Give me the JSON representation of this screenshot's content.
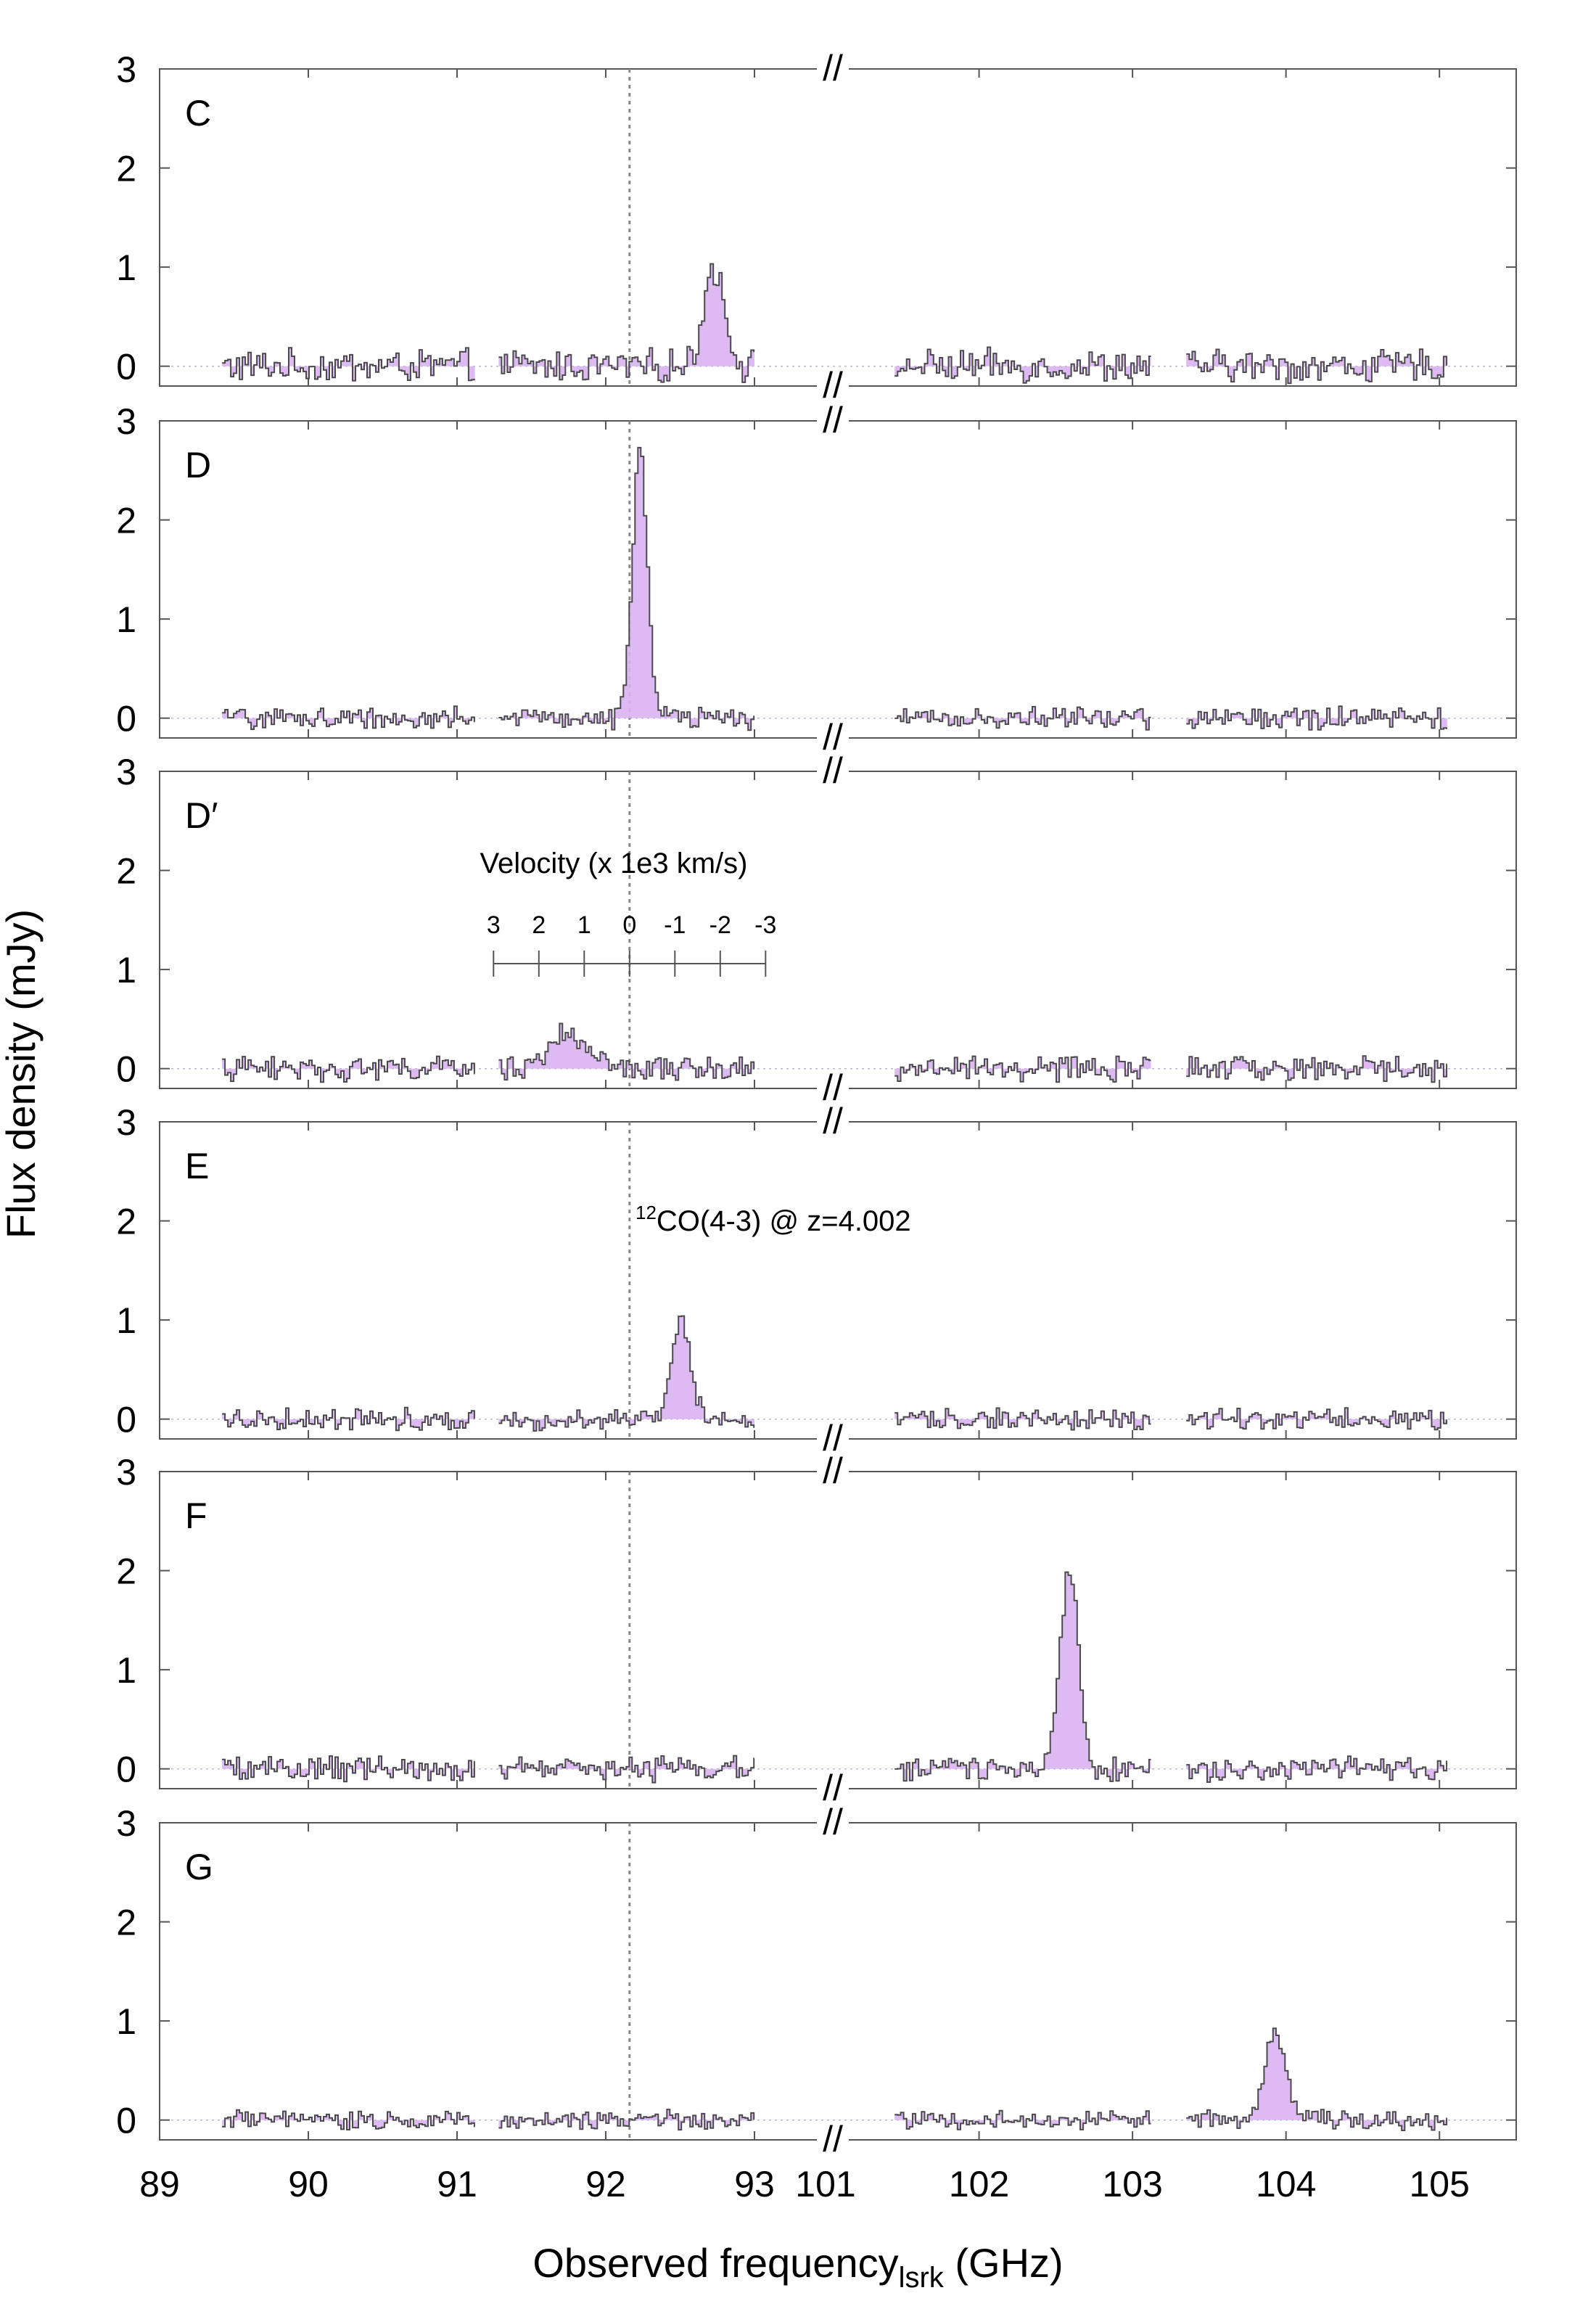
{
  "figure": {
    "xlabel": "Observed frequency",
    "xlabel_sub": "lsrk",
    "xlabel_unit": "(GHz)",
    "ylabel": "Flux density (mJy)",
    "break_mark": "//"
  },
  "chart_data": {
    "type": "line",
    "xlabel": "Observed frequency_lsrk (GHz)",
    "ylabel": "Flux density (mJy)",
    "ylim": [
      -0.2,
      3.0
    ],
    "y_ticks": [
      "0",
      "1",
      "2",
      "3"
    ],
    "x_ticks": [
      "89",
      "90",
      "91",
      "92",
      "93",
      "101",
      "102",
      "103",
      "104",
      "105"
    ],
    "x_axis_broken": true,
    "x_segments": [
      [
        89,
        93
      ],
      [
        101,
        105.5
      ]
    ],
    "reference_line_ghz": 92.16,
    "colors": {
      "fill": "#d9b3f0",
      "line": "#4a4a4a",
      "ref": "#888888"
    },
    "co_label": {
      "sup": "12",
      "text": "CO(4-3) @ z=4.002",
      "panel": "E"
    },
    "velocity_scale": {
      "panel": "D′",
      "title": "Velocity (x 1e3 km/s)",
      "ticks": [
        "3",
        "2",
        "1",
        "0",
        "-1",
        "-2",
        "-3"
      ]
    },
    "spectral_windows_ghz": [
      [
        89.42,
        91.12
      ],
      [
        91.28,
        93.0
      ],
      [
        101.45,
        103.12
      ],
      [
        103.35,
        105.05
      ]
    ],
    "panels": [
      {
        "name": "C",
        "noise": 0.12,
        "lines": [
          {
            "center": 92.72,
            "amp": 1.0,
            "width": 0.07
          }
        ]
      },
      {
        "name": "D",
        "noise": 0.08,
        "lines": [
          {
            "center": 92.22,
            "amp": 2.7,
            "width": 0.05
          }
        ]
      },
      {
        "name": "D′",
        "noise": 0.09,
        "lines": [
          {
            "center": 91.72,
            "amp": 0.35,
            "width": 0.12
          }
        ]
      },
      {
        "name": "E",
        "noise": 0.08,
        "lines": [
          {
            "center": 92.5,
            "amp": 1.0,
            "width": 0.06
          }
        ]
      },
      {
        "name": "F",
        "noise": 0.09,
        "lines": [
          {
            "center": 102.58,
            "amp": 2.05,
            "width": 0.06
          }
        ]
      },
      {
        "name": "G",
        "noise": 0.07,
        "lines": [
          {
            "center": 103.92,
            "amp": 0.9,
            "width": 0.07
          }
        ]
      }
    ]
  }
}
